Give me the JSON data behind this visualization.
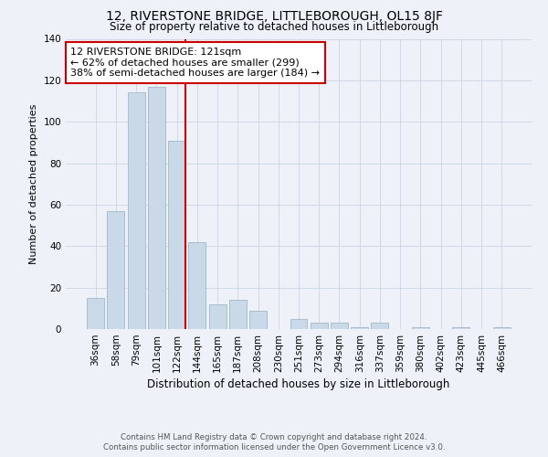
{
  "title": "12, RIVERSTONE BRIDGE, LITTLEBOROUGH, OL15 8JF",
  "subtitle": "Size of property relative to detached houses in Littleborough",
  "xlabel": "Distribution of detached houses by size in Littleborough",
  "ylabel": "Number of detached properties",
  "categories": [
    "36sqm",
    "58sqm",
    "79sqm",
    "101sqm",
    "122sqm",
    "144sqm",
    "165sqm",
    "187sqm",
    "208sqm",
    "230sqm",
    "251sqm",
    "273sqm",
    "294sqm",
    "316sqm",
    "337sqm",
    "359sqm",
    "380sqm",
    "402sqm",
    "423sqm",
    "445sqm",
    "466sqm"
  ],
  "values": [
    15,
    57,
    114,
    117,
    91,
    42,
    12,
    14,
    9,
    0,
    5,
    3,
    3,
    1,
    3,
    0,
    1,
    0,
    1,
    0,
    1
  ],
  "bar_color": "#c9d9e8",
  "bar_edge_color": "#a0b8cc",
  "vline_color": "#cc0000",
  "annotation_text": "12 RIVERSTONE BRIDGE: 121sqm\n← 62% of detached houses are smaller (299)\n38% of semi-detached houses are larger (184) →",
  "annotation_box_color": "#ffffff",
  "annotation_box_edge_color": "#cc0000",
  "ylim": [
    0,
    140
  ],
  "yticks": [
    0,
    20,
    40,
    60,
    80,
    100,
    120,
    140
  ],
  "grid_color": "#d0d8e8",
  "background_color": "#eef2f8",
  "footer_line1": "Contains HM Land Registry data © Crown copyright and database right 2024.",
  "footer_line2": "Contains public sector information licensed under the Open Government Licence v3.0."
}
